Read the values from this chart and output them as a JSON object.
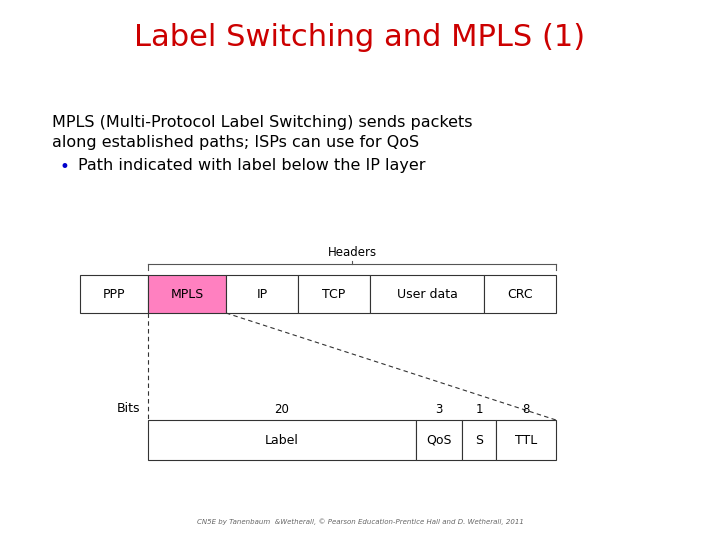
{
  "title": "Label Switching and MPLS (1)",
  "title_color": "#cc0000",
  "title_fontsize": 22,
  "bg_color": "#ffffff",
  "body_text_line1": "MPLS (Multi-Protocol Label Switching) sends packets",
  "body_text_line2": "along established paths; ISPs can use for Qo​S",
  "bullet_text": "Path indicated with label below the IP layer",
  "footer_text": "CN5E by Tanenbaum  &Wetherall, © Pearson Education-Prentice Hall and D. Wetherall, 2011",
  "headers_label": "Headers",
  "bits_label": "Bits",
  "mpls_fill_color": "#ff80c0",
  "body_fontsize": 11.5,
  "bullet_color": "#0000cc"
}
